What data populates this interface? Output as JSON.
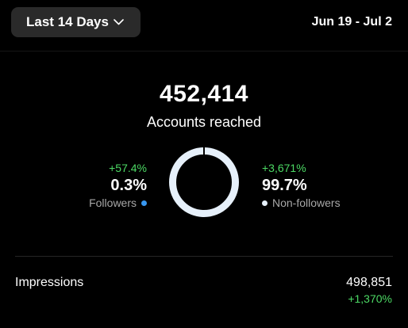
{
  "header": {
    "range_label": "Last 14 Days",
    "date_range": "Jun 19 - Jul 2"
  },
  "reach": {
    "total": "452,414",
    "label": "Accounts reached"
  },
  "followers": {
    "change": "+57.4%",
    "percent": "0.3%",
    "label": "Followers",
    "color": "#3897f0",
    "share": 0.003
  },
  "non_followers": {
    "change": "+3,671%",
    "percent": "99.7%",
    "label": "Non-followers",
    "color": "#e6f0fa",
    "share": 0.997
  },
  "impressions": {
    "label": "Impressions",
    "value": "498,851",
    "change": "+1,370%"
  },
  "colors": {
    "background": "#000000",
    "positive": "#4cd964",
    "button_bg": "#2a2a2a"
  },
  "icons": {
    "range_dropdown": "chevron-down-icon"
  }
}
